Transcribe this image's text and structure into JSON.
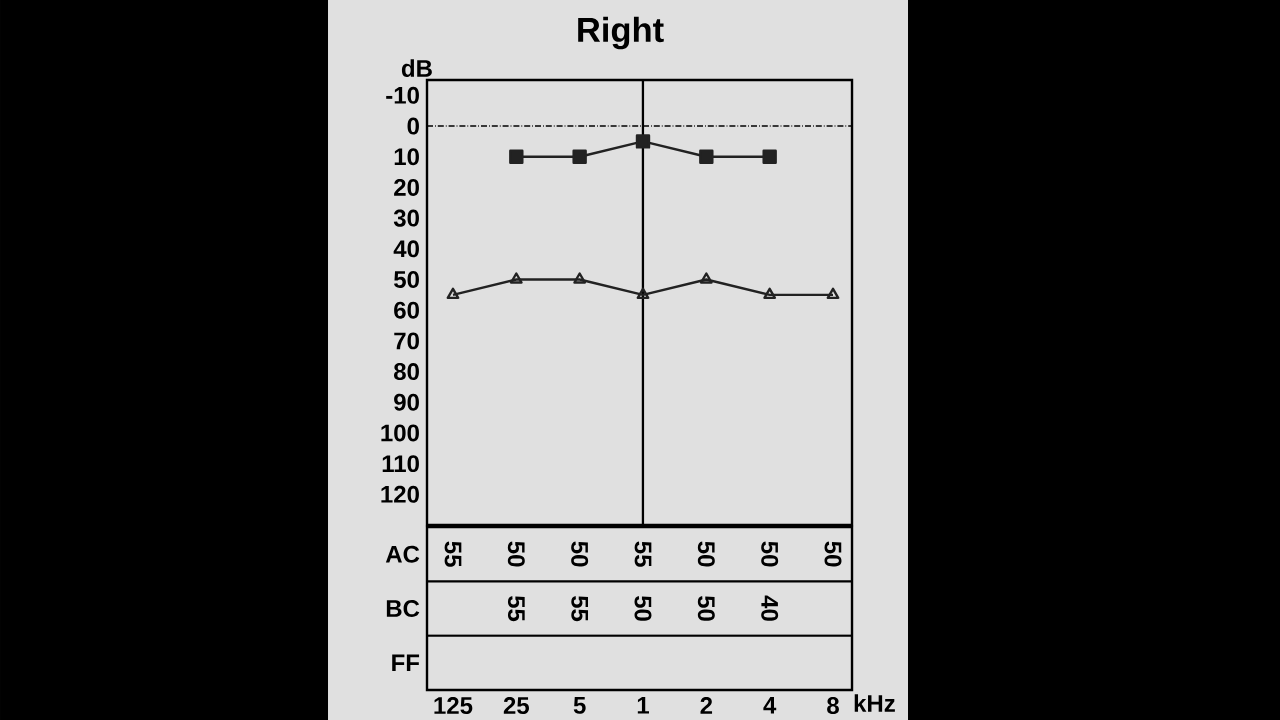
{
  "chart_data": [
    {
      "type": "line",
      "title": "Right",
      "ylabel": "dB",
      "xlabel": "kHz",
      "ylim": [
        130,
        -15
      ],
      "yticks": [
        -10,
        0,
        10,
        20,
        30,
        40,
        50,
        60,
        70,
        80,
        90,
        100,
        110,
        120
      ],
      "tick_labels": "y",
      "categories": [
        "125",
        "25",
        "5",
        "1",
        "2",
        "4",
        "8"
      ],
      "series": [
        {
          "color": "#222222",
          "marker": "triangle",
          "values": [
            55,
            50,
            50,
            55,
            50,
            55,
            55
          ]
        },
        {
          "color": "#222222",
          "marker": "square",
          "values": [
            null,
            10,
            10,
            5,
            10,
            10,
            null
          ]
        }
      ],
      "ref_lines": [
        {
          "axis": "y",
          "value": 0,
          "line_style": "dashed"
        },
        {
          "axis": "x",
          "value": "1",
          "line_style": "solid"
        }
      ]
    },
    {
      "type": "heatmap",
      "categories": [
        "125",
        "25",
        "5",
        "1",
        "2",
        "4",
        "8"
      ],
      "y_categories": [
        "AC",
        "BC",
        "FF"
      ],
      "cells": [
        [
          55,
          50,
          50,
          55,
          50,
          50,
          50
        ],
        [
          null,
          55,
          55,
          50,
          50,
          40,
          null
        ],
        [
          null,
          null,
          null,
          null,
          null,
          null,
          null
        ]
      ],
      "data_labels": true
    }
  ]
}
